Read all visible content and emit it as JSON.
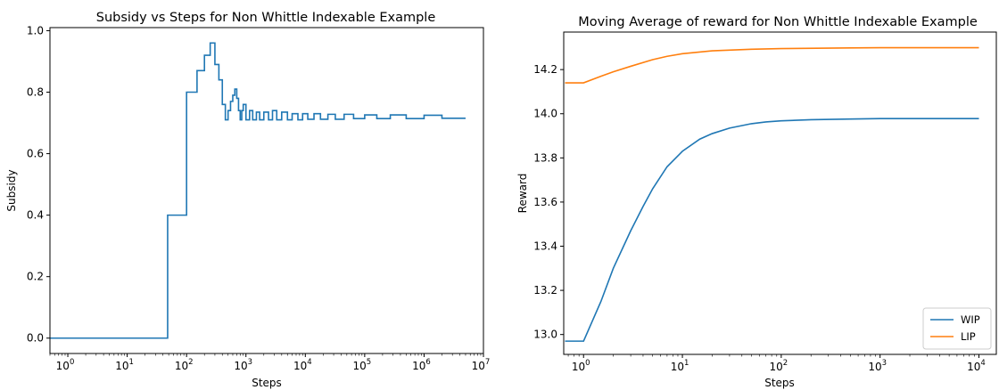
{
  "chart_data": [
    {
      "type": "line",
      "title": "Subsidy vs Steps for Non Whittle Indexable Example",
      "xlabel": "Steps",
      "ylabel": "Subsidy",
      "xscale": "log",
      "xlim": [
        0.5,
        10000000
      ],
      "ylim": [
        -0.05,
        1.01
      ],
      "grid": false,
      "xticks": [
        {
          "base": "10",
          "exp": "0",
          "value": 1
        },
        {
          "base": "10",
          "exp": "1",
          "value": 10
        },
        {
          "base": "10",
          "exp": "2",
          "value": 100
        },
        {
          "base": "10",
          "exp": "3",
          "value": 1000
        },
        {
          "base": "10",
          "exp": "4",
          "value": 10000
        },
        {
          "base": "10",
          "exp": "5",
          "value": 100000
        },
        {
          "base": "10",
          "exp": "6",
          "value": 1000000
        },
        {
          "base": "10",
          "exp": "7",
          "value": 10000000
        }
      ],
      "yticks": [
        "0.0",
        "0.2",
        "0.4",
        "0.6",
        "0.8",
        "1.0"
      ],
      "series": [
        {
          "color": "#1f77b4",
          "x": [
            0.5,
            48,
            48,
            100,
            100,
            150,
            150,
            200,
            200,
            250,
            250,
            300,
            300,
            350,
            350,
            400,
            400,
            450,
            450,
            500,
            500,
            550,
            550,
            600,
            600,
            650,
            650,
            700,
            700,
            750,
            750,
            800,
            800,
            850,
            850,
            900,
            900,
            1000,
            1000,
            1150,
            1150,
            1300,
            1300,
            1500,
            1500,
            1700,
            1700,
            2000,
            2000,
            2400,
            2400,
            2800,
            2800,
            3300,
            3300,
            4000,
            4000,
            5000,
            5000,
            6000,
            6000,
            7500,
            7500,
            9000,
            9000,
            11000,
            11000,
            14000,
            14000,
            18000,
            18000,
            24000,
            24000,
            32000,
            32000,
            45000,
            45000,
            65000,
            65000,
            100000,
            100000,
            160000,
            160000,
            270000,
            270000,
            500000,
            500000,
            1000000,
            1000000,
            2000000,
            2000000,
            5000000
          ],
          "y": [
            0.0,
            0.0,
            0.4,
            0.4,
            0.8,
            0.8,
            0.87,
            0.87,
            0.92,
            0.92,
            0.96,
            0.96,
            0.89,
            0.89,
            0.84,
            0.84,
            0.76,
            0.76,
            0.71,
            0.71,
            0.74,
            0.74,
            0.77,
            0.77,
            0.79,
            0.79,
            0.81,
            0.81,
            0.78,
            0.78,
            0.74,
            0.74,
            0.71,
            0.71,
            0.74,
            0.74,
            0.76,
            0.76,
            0.71,
            0.71,
            0.74,
            0.74,
            0.71,
            0.71,
            0.735,
            0.735,
            0.71,
            0.71,
            0.735,
            0.735,
            0.71,
            0.71,
            0.74,
            0.74,
            0.71,
            0.71,
            0.735,
            0.735,
            0.71,
            0.71,
            0.73,
            0.73,
            0.71,
            0.71,
            0.73,
            0.73,
            0.712,
            0.712,
            0.73,
            0.73,
            0.712,
            0.712,
            0.728,
            0.728,
            0.712,
            0.712,
            0.728,
            0.728,
            0.714,
            0.714,
            0.726,
            0.726,
            0.714,
            0.714,
            0.726,
            0.726,
            0.714,
            0.714,
            0.725,
            0.725,
            0.715,
            0.715
          ]
        }
      ]
    },
    {
      "type": "line",
      "title": "Moving Average of reward for Non Whittle Indexable Example",
      "xlabel": "Steps",
      "ylabel": "Reward",
      "xscale": "log",
      "xlim": [
        0.63,
        15000
      ],
      "ylim": [
        12.91,
        14.37
      ],
      "grid": false,
      "legend": "bottom-right",
      "xticks": [
        {
          "base": "10",
          "exp": "0",
          "value": 1
        },
        {
          "base": "10",
          "exp": "1",
          "value": 10
        },
        {
          "base": "10",
          "exp": "2",
          "value": 100
        },
        {
          "base": "10",
          "exp": "3",
          "value": 1000
        },
        {
          "base": "10",
          "exp": "4",
          "value": 10000
        }
      ],
      "yticks": [
        "13.0",
        "13.2",
        "13.4",
        "13.6",
        "13.8",
        "14.0",
        "14.2"
      ],
      "series": [
        {
          "name": "WIP",
          "color": "#1f77b4",
          "x": [
            0.65,
            1,
            1.5,
            2,
            3,
            4,
            5,
            7,
            10,
            15,
            20,
            30,
            50,
            70,
            100,
            200,
            500,
            1000,
            2000,
            5000,
            10000
          ],
          "y": [
            12.97,
            12.97,
            13.15,
            13.3,
            13.47,
            13.58,
            13.66,
            13.76,
            13.83,
            13.885,
            13.91,
            13.935,
            13.955,
            13.963,
            13.968,
            13.973,
            13.976,
            13.978,
            13.978,
            13.978,
            13.978
          ]
        },
        {
          "name": "LIP",
          "color": "#ff7f0e",
          "x": [
            0.65,
            1,
            1.5,
            2,
            3,
            5,
            7,
            10,
            20,
            50,
            100,
            500,
            1000,
            5000,
            10000
          ],
          "y": [
            14.14,
            14.14,
            14.17,
            14.19,
            14.215,
            14.245,
            14.26,
            14.272,
            14.285,
            14.292,
            14.295,
            14.298,
            14.299,
            14.299,
            14.299
          ]
        }
      ]
    }
  ]
}
